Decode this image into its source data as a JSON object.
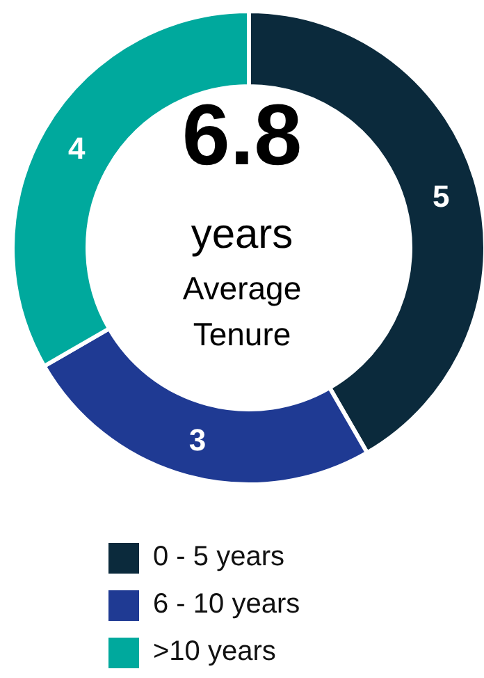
{
  "chart_data": {
    "type": "donut",
    "categories": [
      "0 - 5 years",
      "6 - 10 years",
      ">10 years"
    ],
    "values": [
      5,
      3,
      4
    ],
    "colors": [
      "#0b2a3c",
      "#1f3a93",
      "#00a99d"
    ],
    "annotations": [
      "6.8",
      "years",
      "Average Tenure"
    ],
    "data_labels": true,
    "legend": "bottom"
  }
}
